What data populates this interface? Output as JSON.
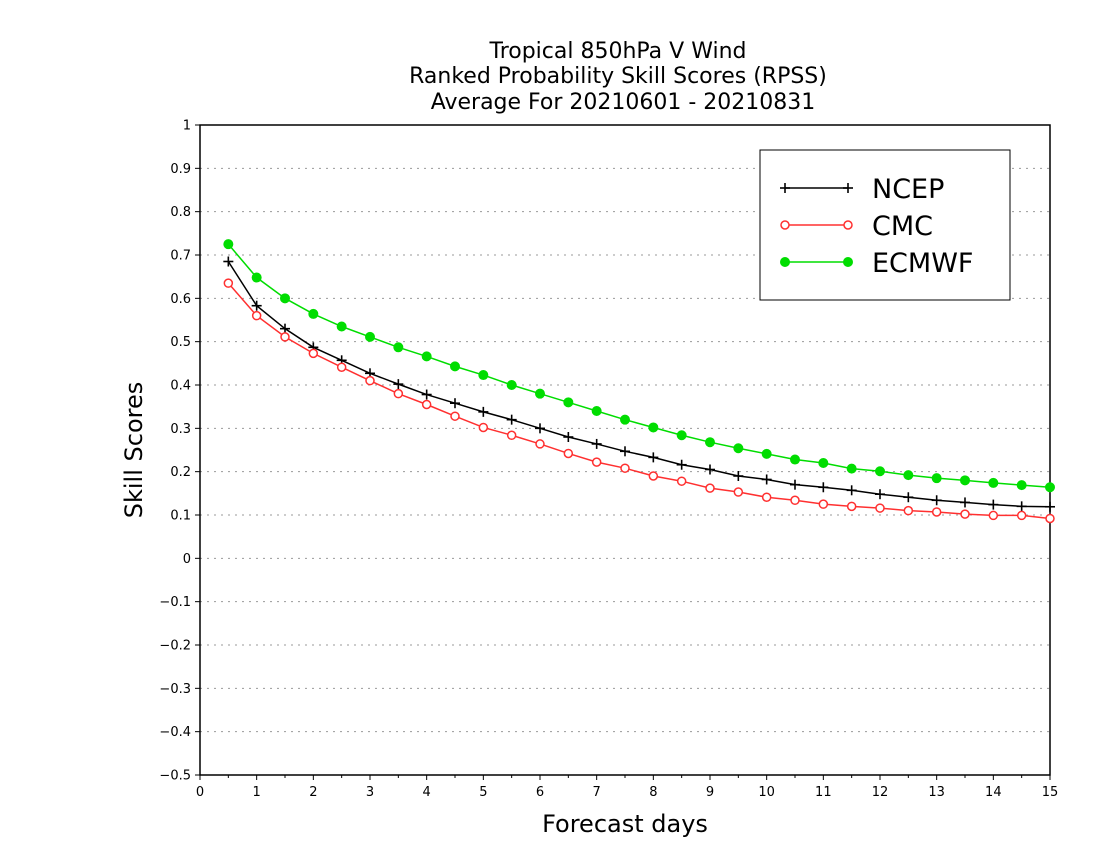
{
  "chart_data": {
    "type": "line",
    "title_lines": [
      "Tropical 850hPa V Wind",
      "Ranked Probability Skill Scores (RPSS)",
      "Average For 20210601 - 20210831"
    ],
    "xlabel": "Forecast days",
    "ylabel": "Skill Scores",
    "xlim": [
      0,
      15
    ],
    "ylim": [
      -0.5,
      1
    ],
    "x_ticks": [
      0,
      1,
      2,
      3,
      4,
      5,
      6,
      7,
      8,
      9,
      10,
      11,
      12,
      13,
      14,
      15
    ],
    "y_ticks": [
      -0.5,
      -0.4,
      -0.3,
      -0.2,
      -0.1,
      0,
      0.1,
      0.2,
      0.3,
      0.4,
      0.5,
      0.6,
      0.7,
      0.8,
      0.9,
      1
    ],
    "x_tick_labels": [
      "0",
      "1",
      "2",
      "3",
      "4",
      "5",
      "6",
      "7",
      "8",
      "9",
      "10",
      "11",
      "12",
      "13",
      "14",
      "15"
    ],
    "y_tick_labels": [
      "−0.5",
      "−0.4",
      "−0.3",
      "−0.2",
      "−0.1",
      "0",
      "0.1",
      "0.2",
      "0.3",
      "0.4",
      "0.5",
      "0.6",
      "0.7",
      "0.8",
      "0.9",
      "1"
    ],
    "grid": "horizontal dotted",
    "legend_position": "top-right",
    "x": [
      0.5,
      1,
      1.5,
      2,
      2.5,
      3,
      3.5,
      4,
      4.5,
      5,
      5.5,
      6,
      6.5,
      7,
      7.5,
      8,
      8.5,
      9,
      9.5,
      10,
      10.5,
      11,
      11.5,
      12,
      12.5,
      13,
      13.5,
      14,
      14.5,
      15
    ],
    "series": [
      {
        "name": "NCEP",
        "color": "#000000",
        "marker": "plus",
        "values": [
          0.685,
          0.583,
          0.53,
          0.487,
          0.457,
          0.427,
          0.402,
          0.378,
          0.358,
          0.338,
          0.32,
          0.3,
          0.28,
          0.264,
          0.247,
          0.233,
          0.216,
          0.205,
          0.19,
          0.182,
          0.17,
          0.164,
          0.157,
          0.148,
          0.141,
          0.134,
          0.129,
          0.124,
          0.12,
          0.119
        ]
      },
      {
        "name": "CMC",
        "color": "#ff3030",
        "marker": "open-circle",
        "values": [
          0.635,
          0.56,
          0.511,
          0.473,
          0.441,
          0.41,
          0.38,
          0.355,
          0.328,
          0.302,
          0.284,
          0.264,
          0.242,
          0.222,
          0.208,
          0.19,
          0.178,
          0.162,
          0.153,
          0.141,
          0.134,
          0.125,
          0.12,
          0.116,
          0.11,
          0.107,
          0.102,
          0.099,
          0.099,
          0.092
        ]
      },
      {
        "name": "ECMWF",
        "color": "#00dd00",
        "marker": "filled-circle",
        "values": [
          0.725,
          0.648,
          0.6,
          0.564,
          0.535,
          0.511,
          0.487,
          0.466,
          0.443,
          0.423,
          0.4,
          0.38,
          0.36,
          0.34,
          0.32,
          0.302,
          0.284,
          0.268,
          0.254,
          0.241,
          0.228,
          0.22,
          0.207,
          0.201,
          0.192,
          0.185,
          0.18,
          0.174,
          0.169,
          0.164
        ]
      }
    ]
  }
}
